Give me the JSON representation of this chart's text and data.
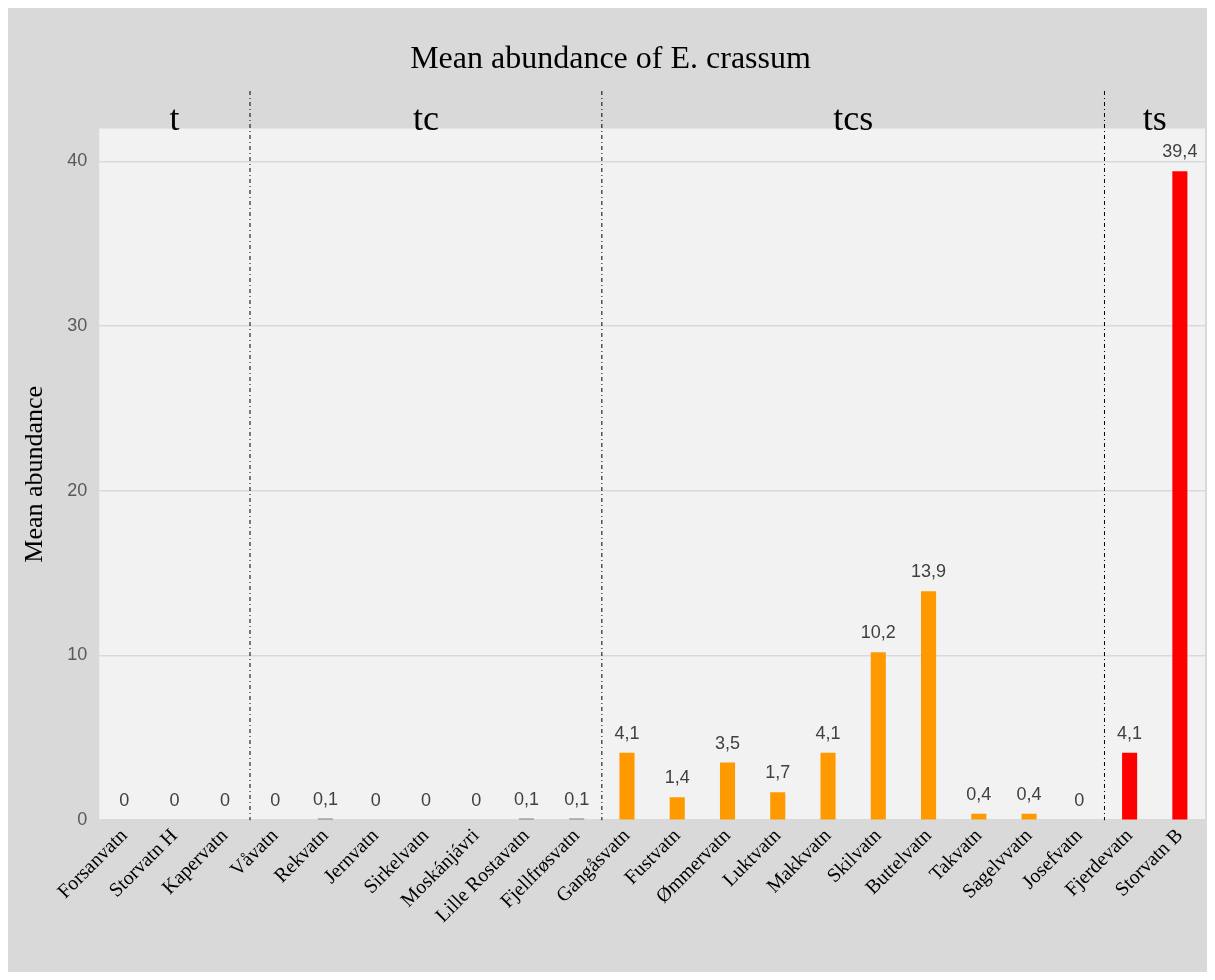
{
  "chart_data": {
    "type": "bar",
    "title": "Mean abundance of E. crassum",
    "ylabel": "Mean abundance",
    "categories": [
      "Forsanvatn",
      "Storvatn H",
      "Kapervatn",
      "Våvatn",
      "Rekvatn",
      "Jernvatn",
      "Sirkelvatn",
      "Moskánjávri",
      "Lille Rostavatn",
      "Fjellfrøsvatn",
      "Gangåsvatn",
      "Fustvatn",
      "Ømmervatn",
      "Luktvatn",
      "Makkvatn",
      "Skilvatn",
      "Buttelvatn",
      "Takvatn",
      "Sagelvvatn",
      "Josefvatn",
      "Fjerdevatn",
      "Storvatn B"
    ],
    "values": [
      0,
      0,
      0,
      0,
      0.1,
      0,
      0,
      0,
      0.1,
      0.1,
      4.1,
      1.4,
      3.5,
      1.7,
      4.1,
      10.2,
      13.9,
      0.4,
      0.4,
      0,
      4.1,
      39.4
    ],
    "value_labels": [
      "0",
      "0",
      "0",
      "0",
      "0,1",
      "0",
      "0",
      "0",
      "0,1",
      "0,1",
      "4,1",
      "1,4",
      "3,5",
      "1,7",
      "4,1",
      "10,2",
      "13,9",
      "0,4",
      "0,4",
      "0",
      "4,1",
      "39,4"
    ],
    "colors": [
      "#7f7f7f",
      "#7f7f7f",
      "#7f7f7f",
      "#7f7f7f",
      "#7f7f7f",
      "#7f7f7f",
      "#7f7f7f",
      "#7f7f7f",
      "#7f7f7f",
      "#7f7f7f",
      "#ff9900",
      "#ff9900",
      "#ff9900",
      "#ff9900",
      "#ff9900",
      "#ff9900",
      "#ff9900",
      "#ff9900",
      "#ff9900",
      "#ff9900",
      "#ff0000",
      "#ff0000"
    ],
    "ylim": [
      0,
      42
    ],
    "yticks": [
      0,
      10,
      20,
      30,
      40
    ],
    "grid": "y",
    "legend": false,
    "annotations": [
      "t",
      "tc",
      "tcs",
      "ts"
    ]
  }
}
